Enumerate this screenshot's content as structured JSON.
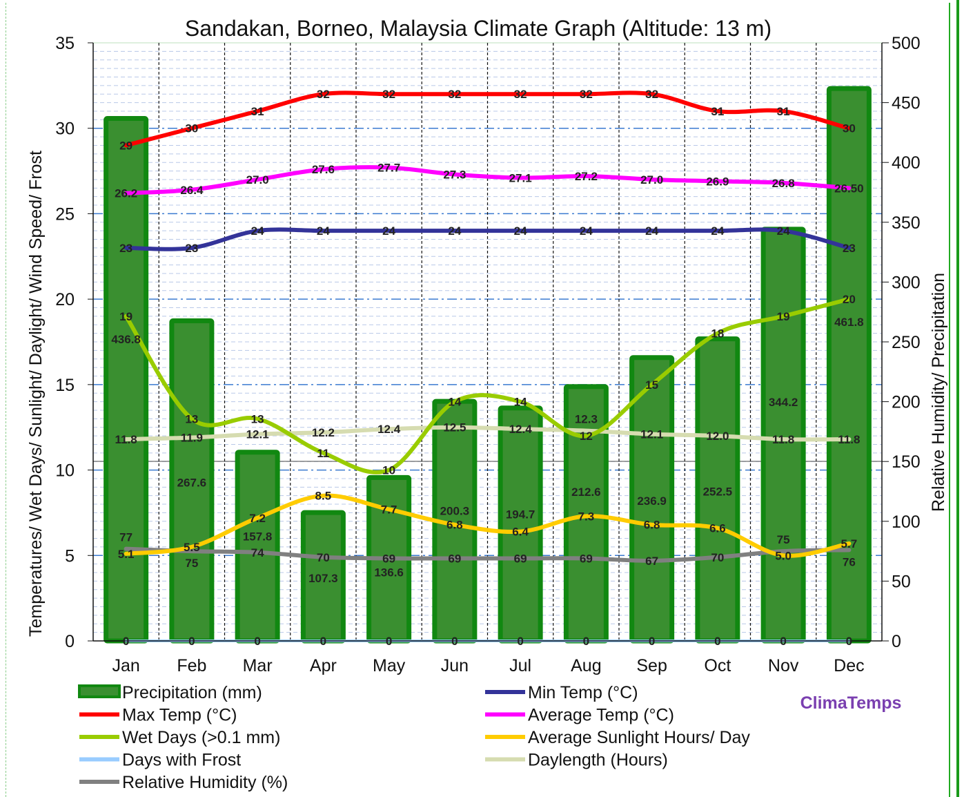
{
  "chart_data": {
    "type": "bar+line",
    "title": "Sandakan, Borneo, Malaysia Climate Graph (Altitude: 13 m)",
    "ylabel_left": "Temperatures/ Wet Days/ Sunlight/ Daylight/ Wind Speed/ Frost",
    "ylabel_right": "Relative Humidity/ Precipitation",
    "ylim_left": [
      0,
      35
    ],
    "ylim_right": [
      0,
      500
    ],
    "yticks_left": [
      0,
      5,
      10,
      15,
      20,
      25,
      30,
      35
    ],
    "yticks_right": [
      0,
      50,
      100,
      150,
      200,
      250,
      300,
      350,
      400,
      450,
      500
    ],
    "categories": [
      "Jan",
      "Feb",
      "Mar",
      "Apr",
      "May",
      "Jun",
      "Jul",
      "Aug",
      "Sep",
      "Oct",
      "Nov",
      "Dec"
    ],
    "series": [
      {
        "name": "Precipitation (mm)",
        "kind": "bar",
        "axis": "right",
        "color": "#3a8f30",
        "values": [
          436.8,
          267.6,
          157.8,
          107.3,
          136.6,
          200.3,
          194.7,
          212.6,
          236.9,
          252.5,
          344.2,
          461.8
        ],
        "labels": [
          "436.8",
          "267.6",
          "157.8",
          "107.3",
          "136.6",
          "200.3",
          "194.7",
          "212.6",
          "236.9",
          "252.5",
          "344.2",
          "461.8"
        ]
      },
      {
        "name": "Max Temp (°C)",
        "kind": "line",
        "axis": "left",
        "color": "#ff0000",
        "values": [
          29,
          30,
          31,
          32,
          32,
          32,
          32,
          32,
          32,
          31,
          31,
          30
        ],
        "labels": [
          "29",
          "30",
          "31",
          "32",
          "32",
          "32",
          "32",
          "32",
          "32",
          "31",
          "31",
          "30"
        ]
      },
      {
        "name": "Average Temp (°C)",
        "kind": "line",
        "axis": "left",
        "color": "#ff00ff",
        "values": [
          26.2,
          26.4,
          27.0,
          27.6,
          27.7,
          27.3,
          27.1,
          27.2,
          27.0,
          26.9,
          26.8,
          26.5
        ],
        "labels": [
          "26.2",
          "26.4",
          "27.0",
          "27.6",
          "27.7",
          "27.3",
          "27.1",
          "27.2",
          "27.0",
          "26.9",
          "26.8",
          "26.50"
        ]
      },
      {
        "name": "Min Temp (°C)",
        "kind": "line",
        "axis": "left",
        "color": "#333399",
        "values": [
          23,
          23,
          24,
          24,
          24,
          24,
          24,
          24,
          24,
          24,
          24,
          23
        ],
        "labels": [
          "23",
          "23",
          "24",
          "24",
          "24",
          "24",
          "24",
          "24",
          "24",
          "24",
          "24",
          "23"
        ]
      },
      {
        "name": "Wet Days (>0.1 mm)",
        "kind": "line",
        "axis": "left",
        "color": "#99cc00",
        "values": [
          19,
          13,
          13,
          11,
          10,
          14,
          14,
          12,
          15,
          18,
          19,
          20
        ],
        "labels": [
          "19",
          "13",
          "13",
          "11",
          "10",
          "14",
          "14",
          "12",
          "15",
          "18",
          "19",
          "20"
        ]
      },
      {
        "name": "Daylength (Hours)",
        "kind": "line",
        "axis": "left",
        "color": "#d6dcb0",
        "values": [
          11.8,
          11.9,
          12.1,
          12.2,
          12.4,
          12.5,
          12.4,
          12.3,
          12.1,
          12.0,
          11.8,
          11.8
        ],
        "labels": [
          "11.8",
          "11.9",
          "12.1",
          "12.2",
          "12.4",
          "12.5",
          "12.4",
          "12.3",
          "12.1",
          "12.0",
          "11.8",
          "11.8"
        ]
      },
      {
        "name": "Average Sunlight Hours/ Day",
        "kind": "line",
        "axis": "left",
        "color": "#ffcc00",
        "values": [
          5.1,
          5.5,
          7.2,
          8.5,
          7.7,
          6.8,
          6.4,
          7.3,
          6.8,
          6.6,
          5.0,
          5.7
        ],
        "labels": [
          "5.1",
          "5.5",
          "7.2",
          "8.5",
          "7.7",
          "6.8",
          "6.4",
          "7.3",
          "6.8",
          "6.6",
          "5.0",
          "5.7"
        ]
      },
      {
        "name": "Relative Humidity (%)",
        "kind": "line",
        "axis": "right",
        "color": "#808080",
        "values": [
          77,
          75,
          74,
          70,
          69,
          69,
          69,
          69,
          67,
          70,
          75,
          76
        ],
        "labels": [
          "77",
          "75",
          "74",
          "70",
          "69",
          "69",
          "69",
          "69",
          "67",
          "70",
          "75",
          "76"
        ]
      },
      {
        "name": "Days with Frost",
        "kind": "line",
        "axis": "left",
        "color": "#99ccff",
        "values": [
          0,
          0,
          0,
          0,
          0,
          0,
          0,
          0,
          0,
          0,
          0,
          0
        ],
        "labels": [
          "0",
          "0",
          "0",
          "0",
          "0",
          "0",
          "0",
          "0",
          "0",
          "0",
          "0",
          "0"
        ]
      }
    ],
    "legend_order": [
      "Precipitation (mm)",
      "Max Temp (°C)",
      "Wet Days (>0.1 mm)",
      "Days with Frost",
      "Relative Humidity (%)",
      "Min Temp (°C)",
      "Average Temp (°C)",
      "Average Sunlight Hours/ Day",
      "Daylength (Hours)"
    ],
    "legend_position": "bottom",
    "grid": true
  },
  "brand": "ClimaTemps"
}
